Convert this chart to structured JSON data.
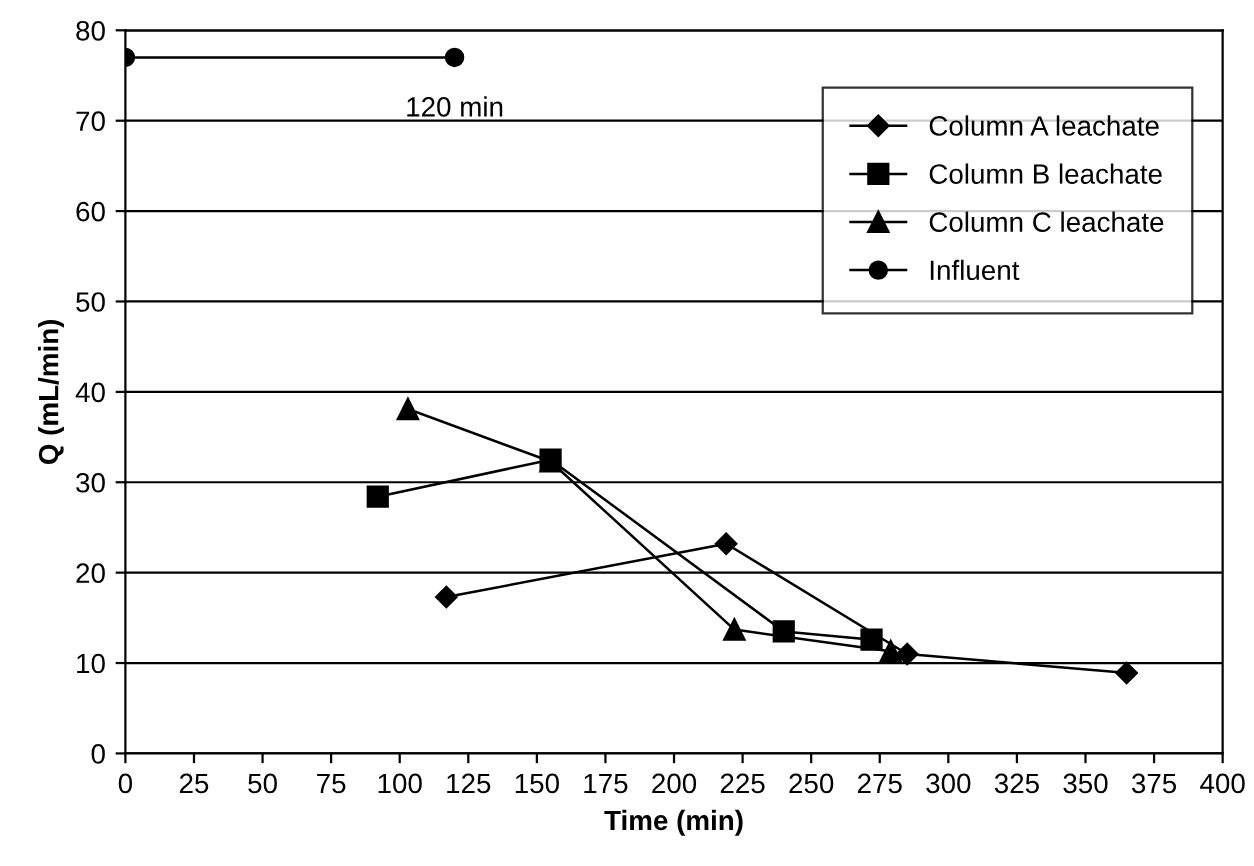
{
  "chart_data": {
    "type": "line",
    "xlabel": "Time (min)",
    "ylabel": "Q (mL/min)",
    "xlim": [
      0,
      400
    ],
    "xticks": [
      0,
      25,
      50,
      75,
      100,
      125,
      150,
      175,
      200,
      225,
      250,
      275,
      300,
      325,
      350,
      375,
      400
    ],
    "ylim": [
      0,
      80
    ],
    "yticks": [
      0,
      10,
      20,
      30,
      40,
      50,
      60,
      70,
      80
    ],
    "grid": "y",
    "legend": "top right",
    "line_style": "solid",
    "series": [
      {
        "name": "Column A leachate",
        "color": "#000000",
        "marker": "diamond",
        "x": [
          117,
          219,
          285,
          365
        ],
        "values": [
          17.3,
          23.2,
          11,
          8.9
        ]
      },
      {
        "name": "Column B leachate",
        "color": "#000000",
        "marker": "square",
        "x": [
          92,
          155,
          240,
          272
        ],
        "values": [
          28.4,
          32.5,
          13.5,
          12.6
        ]
      },
      {
        "name": "Column C leachate",
        "color": "#000000",
        "marker": "triangle",
        "x": [
          103,
          155,
          222,
          279
        ],
        "values": [
          38.1,
          32.3,
          13.7,
          11.3
        ]
      },
      {
        "name": "Influent",
        "color": "#000000",
        "marker": "circle",
        "x": [
          0,
          120
        ],
        "values": [
          77,
          77
        ]
      }
    ],
    "annotations": [
      {
        "text": "120 min",
        "x": 120,
        "y": 77
      }
    ]
  }
}
